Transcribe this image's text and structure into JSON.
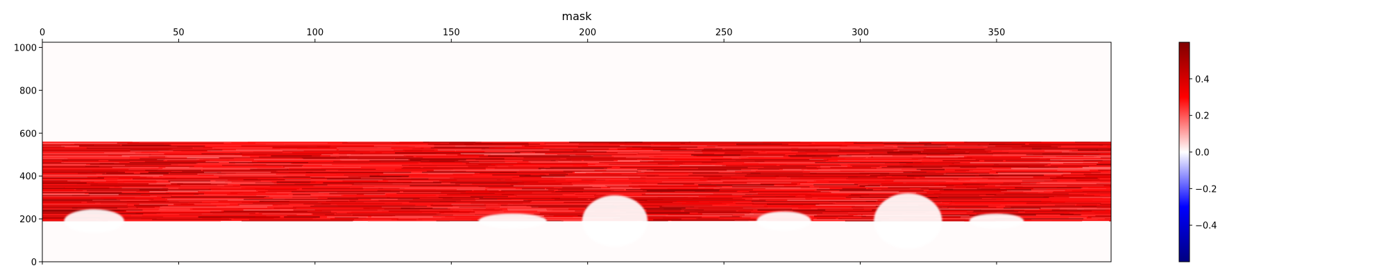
{
  "chart_data": {
    "type": "heatmap",
    "title": "mask",
    "xlabel": "",
    "ylabel": "",
    "xlim": [
      0,
      392
    ],
    "ylim": [
      0,
      1024
    ],
    "x_ticks": [
      0,
      50,
      100,
      150,
      200,
      250,
      300,
      350
    ],
    "y_ticks": [
      0,
      200,
      400,
      600,
      800,
      1000
    ],
    "x_tick_position": "top",
    "grid": false,
    "colormap": "seismic",
    "color_range": [
      -0.6,
      0.6
    ],
    "colorbar": {
      "ticks": [
        0.4,
        0.2,
        0.0,
        -0.2,
        -0.4
      ],
      "tick_labels": [
        "0.4",
        "0.2",
        "0.0",
        "−0.2",
        "−0.4"
      ],
      "placement": "right"
    },
    "bands": [
      {
        "y_range": [
          560,
          1024
        ],
        "value_range": [
          0.0,
          0.01
        ],
        "description": "near zero"
      },
      {
        "y_range": [
          190,
          560
        ],
        "value_range": [
          0.15,
          0.6
        ],
        "description": "positive band, noisy horizontal streaks"
      },
      {
        "y_range": [
          0,
          190
        ],
        "value_range": [
          0.0,
          0.01
        ],
        "description": "near zero"
      }
    ],
    "low_value_regions": [
      {
        "x_range": [
          8,
          30
        ],
        "y_range": [
          190,
          245
        ]
      },
      {
        "x_range": [
          160,
          185
        ],
        "y_range": [
          190,
          225
        ]
      },
      {
        "x_range": [
          198,
          222
        ],
        "y_range": [
          190,
          310
        ]
      },
      {
        "x_range": [
          262,
          282
        ],
        "y_range": [
          190,
          235
        ]
      },
      {
        "x_range": [
          305,
          330
        ],
        "y_range": [
          190,
          320
        ]
      },
      {
        "x_range": [
          340,
          360
        ],
        "y_range": [
          190,
          225
        ]
      }
    ],
    "colors": {
      "max": "#800000",
      "high": "#ff0000",
      "zero": "#ffffff",
      "low": "#0000ff",
      "min": "#000080"
    }
  }
}
